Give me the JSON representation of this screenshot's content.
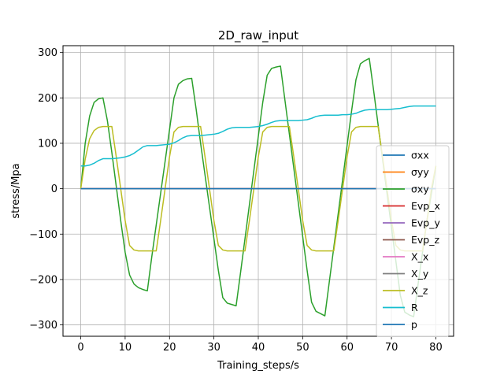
{
  "chart_data": {
    "type": "line",
    "title": "2D_raw_input",
    "xlabel": "Training_steps/s",
    "ylabel": "stress/Mpa",
    "xlim": [
      -4,
      84
    ],
    "ylim": [
      -325,
      315
    ],
    "grid": true,
    "legend_position": "lower-right",
    "xticks": [
      0,
      10,
      20,
      30,
      40,
      50,
      60,
      70,
      80
    ],
    "yticks": [
      -300,
      -200,
      -100,
      0,
      100,
      200,
      300
    ],
    "x": [
      0,
      1,
      2,
      3,
      4,
      5,
      6,
      7,
      8,
      9,
      10,
      11,
      12,
      13,
      14,
      15,
      16,
      17,
      18,
      19,
      20,
      21,
      22,
      23,
      24,
      25,
      26,
      27,
      28,
      29,
      30,
      31,
      32,
      33,
      34,
      35,
      36,
      37,
      38,
      39,
      40,
      41,
      42,
      43,
      44,
      45,
      46,
      47,
      48,
      49,
      50,
      51,
      52,
      53,
      54,
      55,
      56,
      57,
      58,
      59,
      60,
      61,
      62,
      63,
      64,
      65,
      66,
      67,
      68,
      69,
      70,
      71,
      72,
      73,
      74,
      75,
      76,
      77,
      78,
      79,
      80
    ],
    "series": [
      {
        "name": "σxx",
        "color": "#1f77b4",
        "values": [
          0,
          0,
          0,
          0,
          0,
          0,
          0,
          0,
          0,
          0,
          0,
          0,
          0,
          0,
          0,
          0,
          0,
          0,
          0,
          0,
          0,
          0,
          0,
          0,
          0,
          0,
          0,
          0,
          0,
          0,
          0,
          0,
          0,
          0,
          0,
          0,
          0,
          0,
          0,
          0,
          0,
          0,
          0,
          0,
          0,
          0,
          0,
          0,
          0,
          0,
          0,
          0,
          0,
          0,
          0,
          0,
          0,
          0,
          0,
          0,
          0,
          0,
          0,
          0,
          0,
          0,
          0,
          0,
          0,
          0,
          0,
          0,
          0,
          0,
          0,
          0,
          0,
          0,
          0,
          0,
          0
        ]
      },
      {
        "name": "σyy",
        "color": "#ff7f0e",
        "values": [
          0,
          0,
          0,
          0,
          0,
          0,
          0,
          0,
          0,
          0,
          0,
          0,
          0,
          0,
          0,
          0,
          0,
          0,
          0,
          0,
          0,
          0,
          0,
          0,
          0,
          0,
          0,
          0,
          0,
          0,
          0,
          0,
          0,
          0,
          0,
          0,
          0,
          0,
          0,
          0,
          0,
          0,
          0,
          0,
          0,
          0,
          0,
          0,
          0,
          0,
          0,
          0,
          0,
          0,
          0,
          0,
          0,
          0,
          0,
          0,
          0,
          0,
          0,
          0,
          0,
          0,
          0,
          0,
          0,
          0,
          0,
          0,
          0,
          0,
          0,
          0,
          0,
          0,
          0,
          0,
          0
        ]
      },
      {
        "name": "σxy",
        "color": "#2ca02c",
        "values": [
          0,
          100,
          160,
          190,
          198,
          200,
          150,
          80,
          5,
          -70,
          -140,
          -190,
          -210,
          -218,
          -222,
          -225,
          -150,
          -80,
          -10,
          60,
          130,
          200,
          230,
          238,
          242,
          243,
          175,
          100,
          30,
          -40,
          -110,
          -180,
          -240,
          -252,
          -255,
          -258,
          -185,
          -110,
          -35,
          40,
          115,
          190,
          250,
          265,
          268,
          270,
          195,
          120,
          45,
          -30,
          -105,
          -180,
          -250,
          -270,
          -275,
          -280,
          -205,
          -130,
          -55,
          20,
          95,
          170,
          240,
          275,
          282,
          287,
          215,
          140,
          65,
          -10,
          -85,
          -160,
          -235,
          -272,
          -278,
          -282,
          -210,
          -140,
          -70,
          -10,
          50
        ]
      },
      {
        "name": "Evp_x",
        "color": "#d62728",
        "values": [
          0,
          0,
          0,
          0,
          0,
          0,
          0,
          0,
          0,
          0,
          0,
          0,
          0,
          0,
          0,
          0,
          0,
          0,
          0,
          0,
          0,
          0,
          0,
          0,
          0,
          0,
          0,
          0,
          0,
          0,
          0,
          0,
          0,
          0,
          0,
          0,
          0,
          0,
          0,
          0,
          0,
          0,
          0,
          0,
          0,
          0,
          0,
          0,
          0,
          0,
          0,
          0,
          0,
          0,
          0,
          0,
          0,
          0,
          0,
          0,
          0,
          0,
          0,
          0,
          0,
          0,
          0,
          0,
          0,
          0,
          0,
          0,
          0,
          0,
          0,
          0,
          0,
          0,
          0,
          0,
          0
        ]
      },
      {
        "name": "Evp_y",
        "color": "#9467bd",
        "values": [
          0,
          0,
          0,
          0,
          0,
          0,
          0,
          0,
          0,
          0,
          0,
          0,
          0,
          0,
          0,
          0,
          0,
          0,
          0,
          0,
          0,
          0,
          0,
          0,
          0,
          0,
          0,
          0,
          0,
          0,
          0,
          0,
          0,
          0,
          0,
          0,
          0,
          0,
          0,
          0,
          0,
          0,
          0,
          0,
          0,
          0,
          0,
          0,
          0,
          0,
          0,
          0,
          0,
          0,
          0,
          0,
          0,
          0,
          0,
          0,
          0,
          0,
          0,
          0,
          0,
          0,
          0,
          0,
          0,
          0,
          0,
          0,
          0,
          0,
          0,
          0,
          0,
          0,
          0,
          0,
          0
        ]
      },
      {
        "name": "Evp_z",
        "color": "#8c564b",
        "values": [
          0,
          0,
          0,
          0,
          0,
          0,
          0,
          0,
          0,
          0,
          0,
          0,
          0,
          0,
          0,
          0,
          0,
          0,
          0,
          0,
          0,
          0,
          0,
          0,
          0,
          0,
          0,
          0,
          0,
          0,
          0,
          0,
          0,
          0,
          0,
          0,
          0,
          0,
          0,
          0,
          0,
          0,
          0,
          0,
          0,
          0,
          0,
          0,
          0,
          0,
          0,
          0,
          0,
          0,
          0,
          0,
          0,
          0,
          0,
          0,
          0,
          0,
          0,
          0,
          0,
          0,
          0,
          0,
          0,
          0,
          0,
          0,
          0,
          0,
          0,
          0,
          0,
          0,
          0,
          0,
          0
        ]
      },
      {
        "name": "X_x",
        "color": "#e377c2",
        "values": [
          0,
          0,
          0,
          0,
          0,
          0,
          0,
          0,
          0,
          0,
          0,
          0,
          0,
          0,
          0,
          0,
          0,
          0,
          0,
          0,
          0,
          0,
          0,
          0,
          0,
          0,
          0,
          0,
          0,
          0,
          0,
          0,
          0,
          0,
          0,
          0,
          0,
          0,
          0,
          0,
          0,
          0,
          0,
          0,
          0,
          0,
          0,
          0,
          0,
          0,
          0,
          0,
          0,
          0,
          0,
          0,
          0,
          0,
          0,
          0,
          0,
          0,
          0,
          0,
          0,
          0,
          0,
          0,
          0,
          0,
          0,
          0,
          0,
          0,
          0,
          0,
          0,
          0,
          0,
          0,
          0
        ]
      },
      {
        "name": "X_y",
        "color": "#7f7f7f",
        "values": [
          0,
          0,
          0,
          0,
          0,
          0,
          0,
          0,
          0,
          0,
          0,
          0,
          0,
          0,
          0,
          0,
          0,
          0,
          0,
          0,
          0,
          0,
          0,
          0,
          0,
          0,
          0,
          0,
          0,
          0,
          0,
          0,
          0,
          0,
          0,
          0,
          0,
          0,
          0,
          0,
          0,
          0,
          0,
          0,
          0,
          0,
          0,
          0,
          0,
          0,
          0,
          0,
          0,
          0,
          0,
          0,
          0,
          0,
          0,
          0,
          0,
          0,
          0,
          0,
          0,
          0,
          0,
          0,
          0,
          0,
          0,
          0,
          0,
          0,
          0,
          0,
          0,
          0,
          0,
          0,
          0
        ]
      },
      {
        "name": "X_z",
        "color": "#bcbd22",
        "values": [
          0,
          65,
          110,
          128,
          135,
          137,
          137,
          137,
          70,
          0,
          -70,
          -125,
          -135,
          -137,
          -137,
          -137,
          -137,
          -137,
          -70,
          0,
          70,
          125,
          135,
          137,
          137,
          137,
          137,
          137,
          70,
          0,
          -70,
          -125,
          -135,
          -137,
          -137,
          -137,
          -137,
          -137,
          -70,
          0,
          70,
          125,
          135,
          137,
          137,
          137,
          137,
          137,
          70,
          0,
          -70,
          -125,
          -135,
          -137,
          -137,
          -137,
          -137,
          -137,
          -70,
          0,
          70,
          125,
          135,
          137,
          137,
          137,
          137,
          137,
          70,
          0,
          -70,
          -125,
          -135,
          -137,
          -137,
          -137,
          -137,
          -137,
          -70,
          0,
          50
        ]
      },
      {
        "name": "R",
        "color": "#17becf",
        "values": [
          50,
          50,
          52,
          56,
          62,
          66,
          66,
          66,
          67,
          68,
          70,
          73,
          78,
          85,
          92,
          95,
          95,
          95,
          96,
          97,
          98,
          101,
          106,
          112,
          116,
          117,
          117,
          117,
          118,
          119,
          120,
          122,
          126,
          131,
          134,
          135,
          135,
          135,
          135,
          136,
          137,
          139,
          142,
          146,
          149,
          150,
          150,
          150,
          150,
          150,
          151,
          152,
          155,
          159,
          161,
          162,
          162,
          162,
          162,
          163,
          163,
          164,
          166,
          170,
          173,
          174,
          174,
          174,
          174,
          174,
          175,
          176,
          177,
          179,
          181,
          182,
          182,
          182,
          182,
          182,
          182
        ]
      },
      {
        "name": "p",
        "color": "#1f77b4",
        "values": [
          0,
          0,
          0,
          0,
          0,
          0,
          0,
          0,
          0,
          0,
          0,
          0,
          0,
          0,
          0,
          0,
          0,
          0,
          0,
          0,
          0,
          0,
          0,
          0,
          0,
          0,
          0,
          0,
          0,
          0,
          0,
          0,
          0,
          0,
          0,
          0,
          0,
          0,
          0,
          0,
          0,
          0,
          0,
          0,
          0,
          0,
          0,
          0,
          0,
          0,
          0,
          0,
          0,
          0,
          0,
          0,
          0,
          0,
          0,
          0,
          0,
          0,
          0,
          0,
          0,
          0,
          0,
          0,
          0,
          0,
          0,
          0,
          0,
          0,
          0,
          0,
          0,
          0,
          0,
          0,
          0
        ]
      }
    ]
  }
}
